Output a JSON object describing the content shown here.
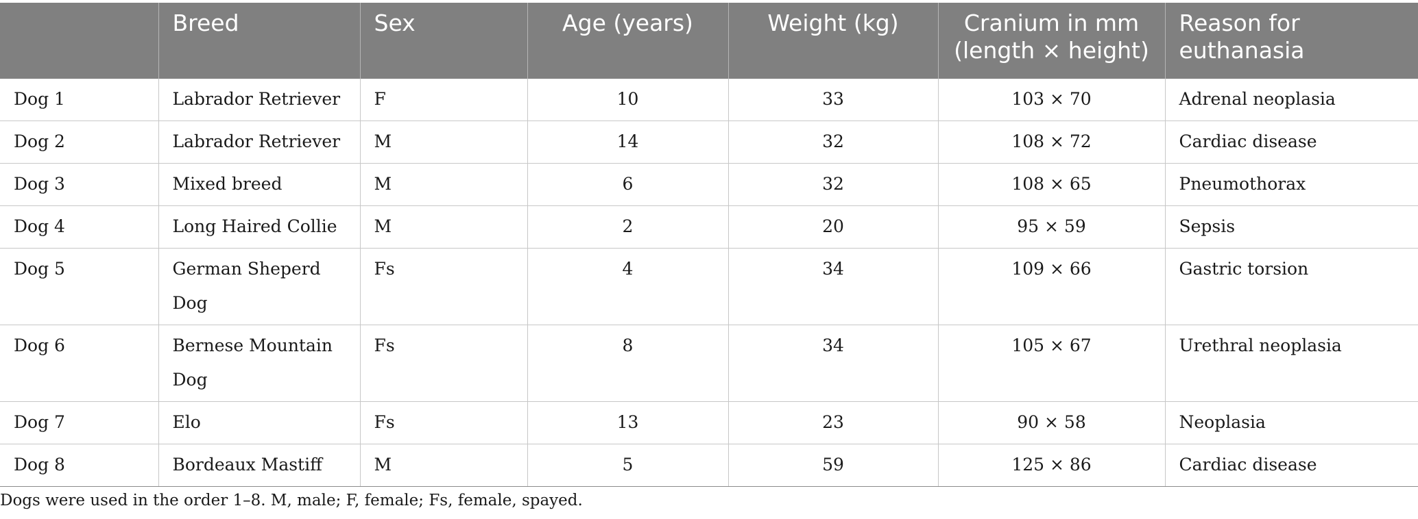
{
  "table": {
    "headers": [
      "",
      "Breed",
      "Sex",
      "Age (years)",
      "Weight (kg)",
      "Cranium in mm (length × height)",
      "Reason for euthanasia"
    ],
    "rows": [
      [
        "Dog 1",
        "Labrador Retriever",
        "F",
        "10",
        "33",
        "103 × 70",
        "Adrenal neoplasia"
      ],
      [
        "Dog 2",
        "Labrador Retriever",
        "M",
        "14",
        "32",
        "108 × 72",
        "Cardiac disease"
      ],
      [
        "Dog 3",
        "Mixed breed",
        "M",
        "6",
        "32",
        "108 × 65",
        "Pneumothorax"
      ],
      [
        "Dog 4",
        "Long Haired Collie",
        "M",
        "2",
        "20",
        "95 × 59",
        "Sepsis"
      ],
      [
        "Dog 5",
        "German Sheperd Dog",
        "Fs",
        "4",
        "34",
        "109 × 66",
        "Gastric torsion"
      ],
      [
        "Dog 6",
        "Bernese Mountain Dog",
        "Fs",
        "8",
        "34",
        "105 × 67",
        "Urethral neoplasia"
      ],
      [
        "Dog 7",
        "Elo",
        "Fs",
        "13",
        "23",
        "90 × 58",
        "Neoplasia"
      ],
      [
        "Dog 8",
        "Bordeaux Mastiff",
        "M",
        "5",
        "59",
        "125 × 86",
        "Cardiac disease"
      ]
    ]
  },
  "footnote": "Dogs were used in the order 1–8. M, male; F, female; Fs, female, spayed.",
  "colors": {
    "header_bg": "#808080",
    "header_text": "#ffffff",
    "grid": "#c7c7c7"
  }
}
